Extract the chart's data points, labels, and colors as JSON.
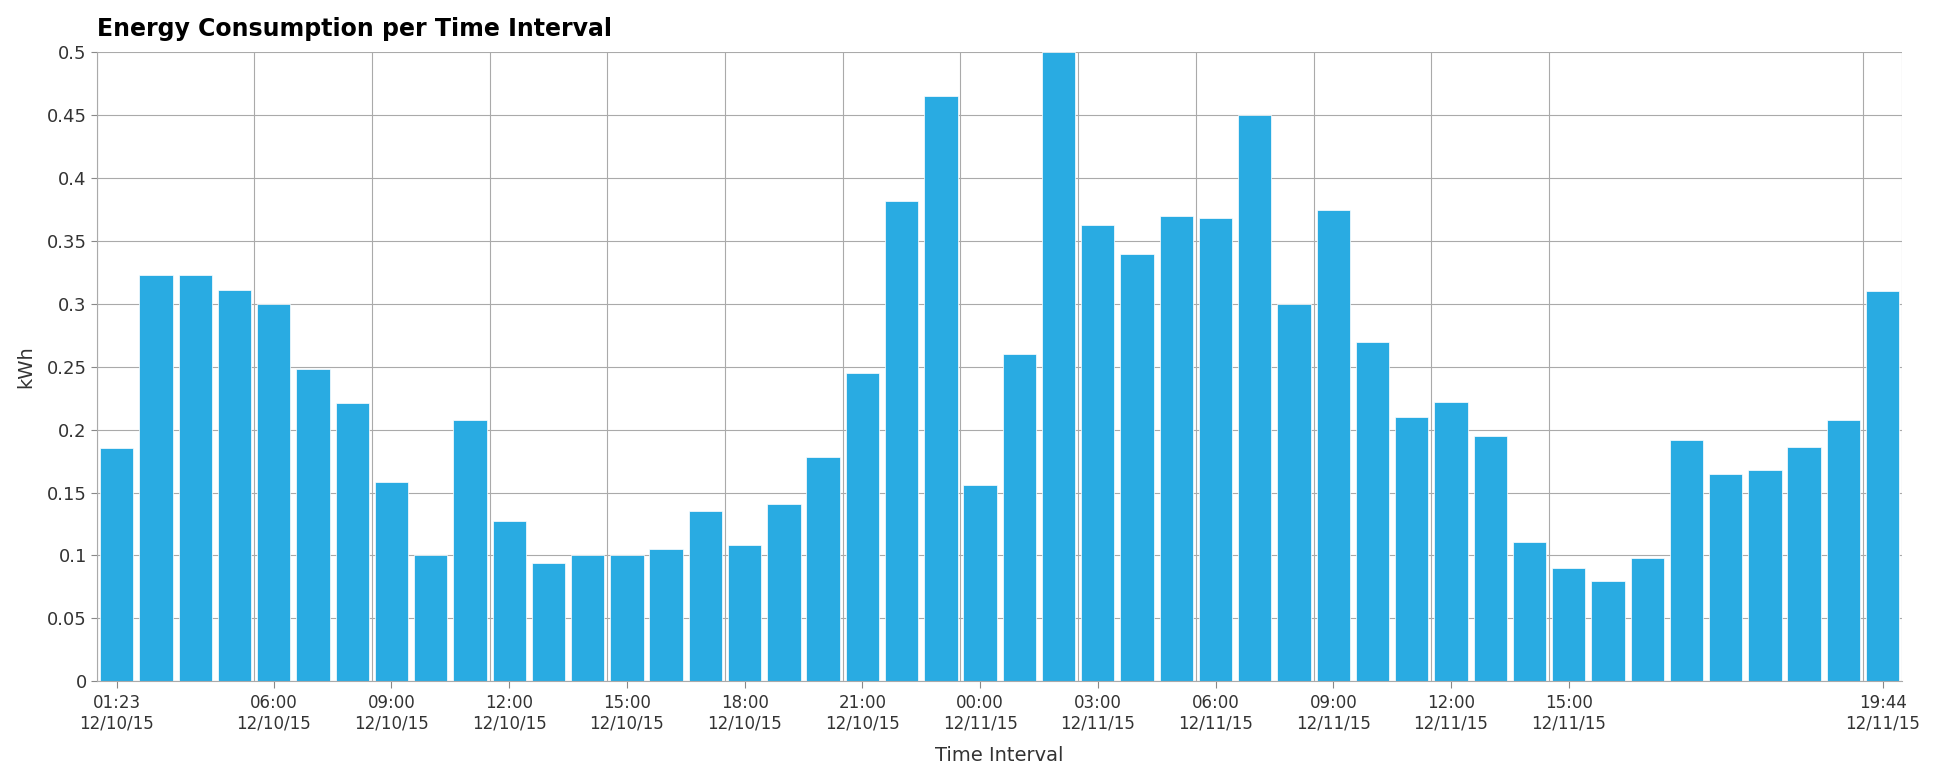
{
  "title": "Energy Consumption per Time Interval",
  "xlabel": "Time Interval",
  "ylabel": "kWh",
  "bar_color": "#29ABE2",
  "background_color": "#ffffff",
  "grid_color": "#aaaaaa",
  "ylim": [
    0,
    0.5
  ],
  "ytick_vals": [
    0,
    0.05,
    0.1,
    0.15,
    0.2,
    0.25,
    0.3,
    0.35,
    0.4,
    0.45,
    0.5
  ],
  "ytick_labels": [
    "0",
    "0.05",
    "0.1",
    "0.15",
    "0.2",
    "0.25",
    "0.3",
    "0.35",
    "0.4",
    "0.45",
    "0.5"
  ],
  "values": [
    0.185,
    0.323,
    0.323,
    0.311,
    0.3,
    0.248,
    0.221,
    0.158,
    0.1,
    0.208,
    0.127,
    0.094,
    0.1,
    0.1,
    0.105,
    0.135,
    0.108,
    0.141,
    0.178,
    0.245,
    0.382,
    0.465,
    0.156,
    0.26,
    0.5,
    0.363,
    0.34,
    0.37,
    0.368,
    0.45,
    0.3,
    0.375,
    0.27,
    0.21,
    0.222,
    0.195,
    0.111,
    0.09,
    0.08,
    0.098,
    0.192,
    0.165,
    0.168,
    0.186,
    0.208,
    0.31
  ],
  "major_tick_labels": [
    "01:23\n12/10/15",
    "06:00\n12/10/15",
    "09:00\n12/10/15",
    "12:00\n12/10/15",
    "15:00\n12/10/15",
    "18:00\n12/10/15",
    "21:00\n12/10/15",
    "00:00\n12/11/15",
    "03:00\n12/11/15",
    "06:00\n12/11/15",
    "09:00\n12/11/15",
    "12:00\n12/11/15",
    "15:00\n12/11/15",
    "19:44\n12/11/15"
  ],
  "shown_tick_positions": [
    0,
    4,
    7,
    10,
    13,
    16,
    19,
    22,
    25,
    28,
    31,
    34,
    37,
    45
  ]
}
